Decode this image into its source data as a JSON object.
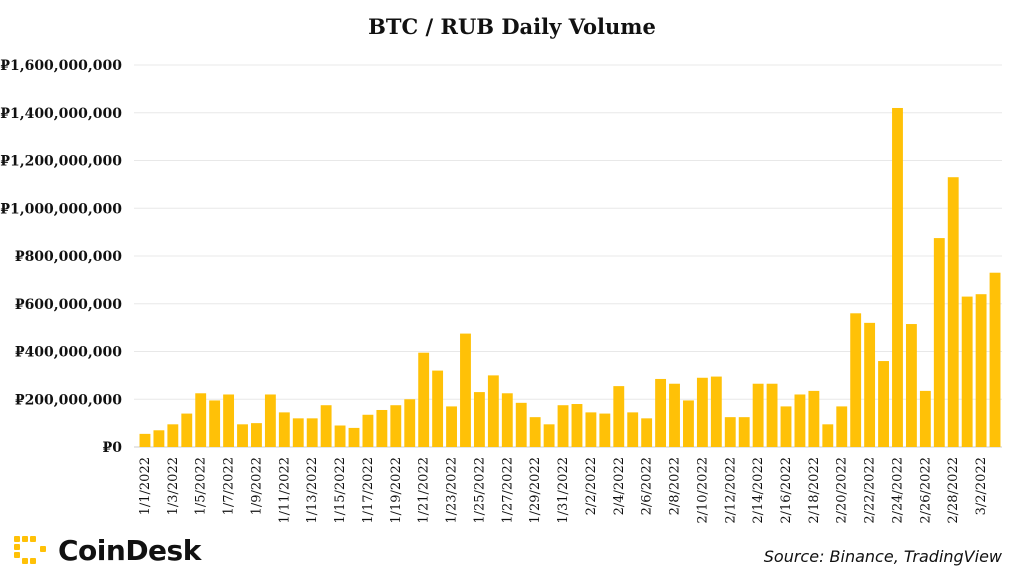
{
  "chart_data": {
    "type": "bar",
    "title": "BTC / RUB Daily Volume",
    "xlabel": "",
    "ylabel": "",
    "ylim": [
      0,
      1600000000
    ],
    "yticks": [
      0,
      200000000,
      400000000,
      600000000,
      800000000,
      1000000000,
      1200000000,
      1400000000,
      1600000000
    ],
    "ytick_labels": [
      "₽0",
      "₽200,000,000",
      "₽400,000,000",
      "₽600,000,000",
      "₽800,000,000",
      "₽1,000,000,000",
      "₽1,200,000,000",
      "₽1,400,000,000",
      "₽1,600,000,000"
    ],
    "grid": true,
    "bar_color": "#FFC107",
    "categories": [
      "1/1/2022",
      "1/2/2022",
      "1/3/2022",
      "1/4/2022",
      "1/5/2022",
      "1/6/2022",
      "1/7/2022",
      "1/8/2022",
      "1/9/2022",
      "1/10/2022",
      "1/11/2022",
      "1/12/2022",
      "1/13/2022",
      "1/14/2022",
      "1/15/2022",
      "1/16/2022",
      "1/17/2022",
      "1/18/2022",
      "1/19/2022",
      "1/20/2022",
      "1/21/2022",
      "1/22/2022",
      "1/23/2022",
      "1/24/2022",
      "1/25/2022",
      "1/26/2022",
      "1/27/2022",
      "1/28/2022",
      "1/29/2022",
      "1/30/2022",
      "1/31/2022",
      "2/1/2022",
      "2/2/2022",
      "2/3/2022",
      "2/4/2022",
      "2/5/2022",
      "2/6/2022",
      "2/7/2022",
      "2/8/2022",
      "2/9/2022",
      "2/10/2022",
      "2/11/2022",
      "2/12/2022",
      "2/13/2022",
      "2/14/2022",
      "2/15/2022",
      "2/16/2022",
      "2/17/2022",
      "2/18/2022",
      "2/19/2022",
      "2/20/2022",
      "2/21/2022",
      "2/22/2022",
      "2/23/2022",
      "2/24/2022",
      "2/25/2022",
      "2/26/2022",
      "2/27/2022",
      "2/28/2022",
      "3/1/2022",
      "3/2/2022",
      "3/3/2022"
    ],
    "visible_xtick_labels": [
      "1/1/2022",
      "1/3/2022",
      "1/5/2022",
      "1/7/2022",
      "1/9/2022",
      "1/11/2022",
      "1/13/2022",
      "1/15/2022",
      "1/17/2022",
      "1/19/2022",
      "1/21/2022",
      "1/23/2022",
      "1/25/2022",
      "1/27/2022",
      "1/29/2022",
      "1/31/2022",
      "2/2/2022",
      "2/4/2022",
      "2/6/2022",
      "2/8/2022",
      "2/10/2022",
      "2/12/2022",
      "2/14/2022",
      "2/16/2022",
      "2/18/2022",
      "2/20/2022",
      "2/22/2022",
      "2/24/2022",
      "2/26/2022",
      "2/28/2022",
      "3/2/2022"
    ],
    "values": [
      55000000,
      70000000,
      95000000,
      140000000,
      225000000,
      195000000,
      220000000,
      95000000,
      100000000,
      220000000,
      145000000,
      120000000,
      120000000,
      175000000,
      90000000,
      80000000,
      135000000,
      155000000,
      175000000,
      200000000,
      395000000,
      320000000,
      170000000,
      475000000,
      230000000,
      300000000,
      225000000,
      185000000,
      125000000,
      95000000,
      175000000,
      180000000,
      145000000,
      140000000,
      255000000,
      145000000,
      120000000,
      285000000,
      265000000,
      195000000,
      290000000,
      295000000,
      125000000,
      125000000,
      265000000,
      265000000,
      170000000,
      220000000,
      235000000,
      95000000,
      170000000,
      560000000,
      520000000,
      360000000,
      1420000000,
      515000000,
      235000000,
      875000000,
      1130000000,
      630000000,
      640000000,
      730000000
    ]
  },
  "source": "Source: Binance, TradingView",
  "brand": {
    "name": "CoinDesk",
    "logo_color": "#FFC107",
    "logo_icon": "coindesk-bracket-icon"
  }
}
